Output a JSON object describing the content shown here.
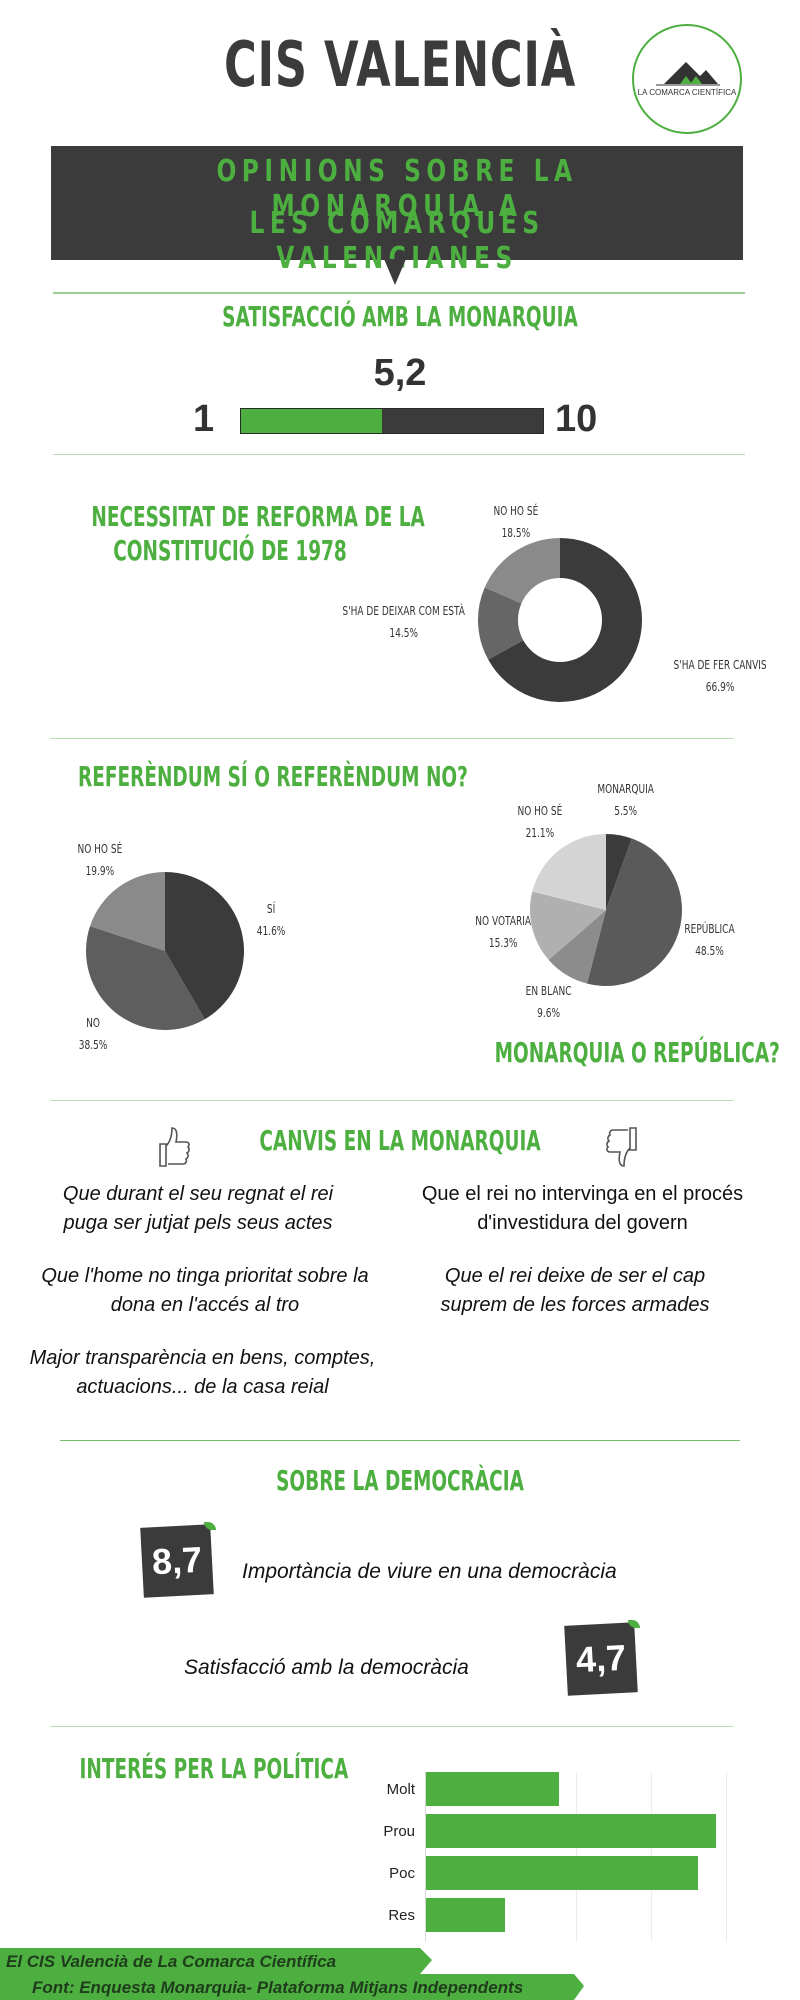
{
  "header": {
    "title": "CIS VALENCIÀ",
    "logo_text": "LA COMARCA CIENTÍFICA",
    "banner_line1": "OPINIONS SOBRE LA MONARQUIA A",
    "banner_line2": "LES COMARQUES VALENCIANES"
  },
  "satisfaction": {
    "title": "SATISFACCIÓ AMB LA MONARQUIA",
    "value_label": "5,2",
    "value": 5.2,
    "min_label": "1",
    "max_label": "10",
    "min": 1,
    "max": 10
  },
  "reform": {
    "title_line1": "NECESSITAT DE REFORMA DE LA",
    "title_line2": "CONSTITUCIÓ DE 1978"
  },
  "referendum": {
    "title": "REFERÈNDUM SÍ O REFERÈNDUM NO?"
  },
  "monarchy_republic": {
    "title": "MONARQUIA O REPÚBLICA?"
  },
  "changes": {
    "title": "CANVIS EN LA MONARQUIA",
    "left": [
      "Que durant el seu regnat el rei puga ser jutjat pels seus actes",
      "Que l'home no tinga prioritat sobre la dona en l'accés al tro",
      "Major transparència en bens, comptes, actuacions... de la casa reial"
    ],
    "right": [
      "Que el rei no intervinga en el procés d'investidura del govern",
      "Que el rei  deixe de ser el cap suprem de les forces armades"
    ]
  },
  "democracy": {
    "title": "SOBRE LA DEMOCRÀCIA",
    "items": [
      {
        "score": "8,7",
        "label": "Importància de viure en una democràcia"
      },
      {
        "score": "4,7",
        "label": "Satisfacció amb la democràcia"
      }
    ]
  },
  "politics": {
    "title": "INTERÉS PER LA POLÍTICA"
  },
  "footer": {
    "line1": "El CIS Valencià de  La Comarca Científica",
    "line2": "Font: Enquesta Monarquia- Plataforma Mitjans Independents"
  },
  "colors": {
    "green": "#4caf3f",
    "dark": "#3b3b3b"
  },
  "chart_data": [
    {
      "type": "pie",
      "title": "NECESSITAT DE REFORMA DE LA CONSTITUCIÓ DE 1978",
      "donut": true,
      "slices": [
        {
          "label": "S'HA DE FER CANVIS",
          "value": 66.9,
          "value_label": "66.9%",
          "color": "#3b3b3b"
        },
        {
          "label": "S'HA DE DEIXAR COM ESTÀ",
          "value": 14.5,
          "value_label": "14.5%",
          "color": "#666666"
        },
        {
          "label": "NO HO SÉ",
          "value": 18.5,
          "value_label": "18.5%",
          "color": "#8a8a8a"
        }
      ]
    },
    {
      "type": "pie",
      "title": "REFERÈNDUM SÍ O REFERÈNDUM NO?",
      "slices": [
        {
          "label": "SÍ",
          "value": 41.6,
          "value_label": "41.6%",
          "color": "#3b3b3b"
        },
        {
          "label": "NO",
          "value": 38.5,
          "value_label": "38.5%",
          "color": "#5e5e5e"
        },
        {
          "label": "NO HO SÉ",
          "value": 19.9,
          "value_label": "19.9%",
          "color": "#8a8a8a"
        }
      ]
    },
    {
      "type": "pie",
      "title": "MONARQUIA O REPÚBLICA?",
      "slices": [
        {
          "label": "MONARQUIA",
          "value": 5.5,
          "value_label": "5.5%",
          "color": "#3b3b3b"
        },
        {
          "label": "REPÚBLICA",
          "value": 48.5,
          "value_label": "48.5%",
          "color": "#5a5a5a"
        },
        {
          "label": "EN BLANC",
          "value": 9.6,
          "value_label": "9.6%",
          "color": "#8c8c8c"
        },
        {
          "label": "NO VOTARIA",
          "value": 15.3,
          "value_label": "15.3%",
          "color": "#b0b0b0"
        },
        {
          "label": "NO HO SÉ",
          "value": 21.1,
          "value_label": "21.1%",
          "color": "#d4d4d4"
        }
      ]
    },
    {
      "type": "bar",
      "orientation": "horizontal",
      "title": "INTERÉS PER LA POLÍTICA",
      "categories": [
        "Molt",
        "Prou",
        "Poc",
        "Res"
      ],
      "values": [
        22,
        48,
        45,
        13
      ],
      "xlim": [
        0,
        50
      ],
      "grid": true
    }
  ]
}
